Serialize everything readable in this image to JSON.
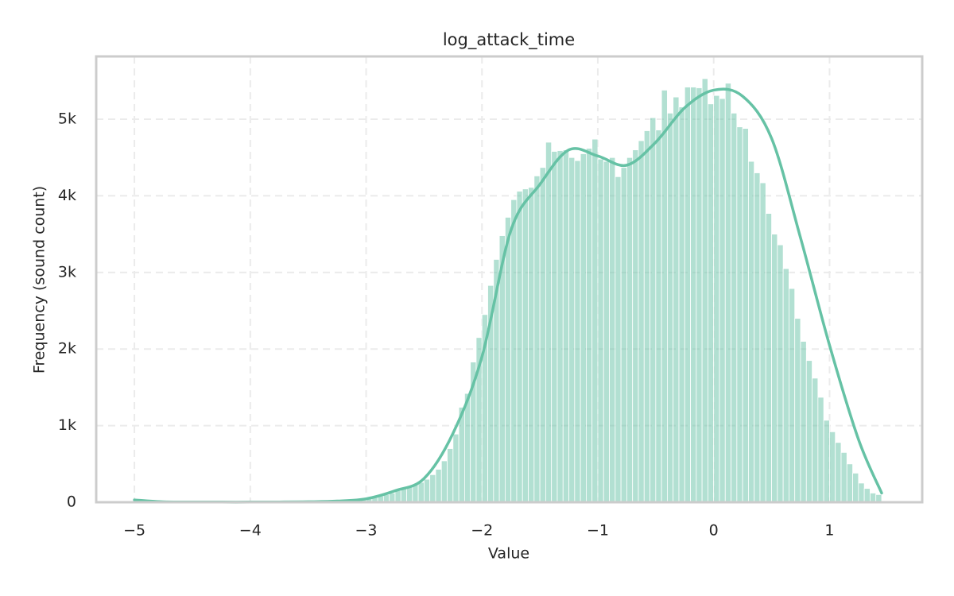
{
  "chart_data": {
    "type": "histogram",
    "title": "log_attack_time",
    "x_label": "Value",
    "y_label": "Frequency (sound count)",
    "color": "#66c2a5",
    "grid": true,
    "bins": [
      -5,
      -4.95,
      -4.9,
      -4.85,
      -4.8,
      -4.75,
      -4.7,
      -4.65,
      -4.6,
      -4.55,
      -4.5,
      -4.45,
      -4.4,
      -4.35,
      -4.3,
      -4.25,
      -4.2,
      -4.15,
      -4.1,
      -4.05,
      -4,
      -3.95,
      -3.9,
      -3.85,
      -3.8,
      -3.75,
      -3.7,
      -3.65,
      -3.6,
      -3.55,
      -3.5,
      -3.45,
      -3.4,
      -3.35,
      -3.3,
      -3.25,
      -3.2,
      -3.15,
      -3.1,
      -3.05,
      -3,
      -2.95,
      -2.9,
      -2.85,
      -2.8,
      -2.75,
      -2.7,
      -2.65,
      -2.6,
      -2.55,
      -2.5,
      -2.45,
      -2.4,
      -2.35,
      -2.3,
      -2.25,
      -2.2,
      -2.15,
      -2.1,
      -2.05,
      -2,
      -1.95,
      -1.9,
      -1.85,
      -1.8,
      -1.75,
      -1.7,
      -1.65,
      -1.6,
      -1.55,
      -1.5,
      -1.45,
      -1.4,
      -1.35,
      -1.3,
      -1.25,
      -1.2,
      -1.15,
      -1.1,
      -1.05,
      -1,
      -0.95,
      -0.9,
      -0.85,
      -0.8,
      -0.75,
      -0.7,
      -0.65,
      -0.6,
      -0.55,
      -0.5,
      -0.45,
      -0.4,
      -0.35,
      -0.3,
      -0.25,
      -0.2,
      -0.15,
      -0.1,
      -0.05,
      0,
      0.05,
      0.1,
      0.15,
      0.2,
      0.25,
      0.3,
      0.35,
      0.4,
      0.45,
      0.5,
      0.55,
      0.6,
      0.65,
      0.7,
      0.75,
      0.8,
      0.85,
      0.9,
      0.95,
      1,
      1.05,
      1.1,
      1.15,
      1.2,
      1.25,
      1.3,
      1.35,
      1.4,
      1.45
    ],
    "counts": [
      22,
      8,
      4,
      3,
      2,
      2,
      1,
      1,
      1,
      1,
      1,
      1,
      2,
      1,
      1,
      2,
      2,
      1,
      2,
      2,
      2,
      3,
      3,
      3,
      4,
      4,
      5,
      5,
      6,
      7,
      8,
      9,
      10,
      12,
      14,
      16,
      19,
      23,
      28,
      35,
      45,
      60,
      80,
      100,
      120,
      150,
      175,
      200,
      230,
      260,
      300,
      360,
      430,
      540,
      700,
      890,
      1240,
      1420,
      1830,
      2150,
      2450,
      2830,
      3170,
      3480,
      3720,
      3950,
      4060,
      4090,
      4110,
      4260,
      4370,
      4700,
      4580,
      4590,
      4600,
      4500,
      4460,
      4550,
      4620,
      4740,
      4480,
      4450,
      4500,
      4250,
      4370,
      4500,
      4600,
      4720,
      4850,
      5020,
      4860,
      5380,
      5080,
      5290,
      5160,
      5420,
      5420,
      5410,
      5530,
      5200,
      5310,
      5270,
      5470,
      5080,
      4900,
      4880,
      4450,
      4300,
      4170,
      3770,
      3500,
      3360,
      3050,
      2790,
      2400,
      2100,
      1850,
      1620,
      1370,
      1070,
      920,
      780,
      650,
      500,
      380,
      250,
      180,
      120,
      100
    ],
    "kde": {
      "x": [
        -5,
        -4.75,
        -4.5,
        -4.25,
        -4,
        -3.75,
        -3.5,
        -3.25,
        -3,
        -2.75,
        -2.5,
        -2.25,
        -2,
        -1.75,
        -1.5,
        -1.25,
        -1,
        -0.75,
        -0.5,
        -0.25,
        0,
        0.25,
        0.5,
        0.75,
        1,
        1.25,
        1.45
      ],
      "values": [
        30,
        5,
        3,
        2,
        2,
        3,
        6,
        15,
        45,
        150,
        310,
        900,
        1900,
        3550,
        4150,
        4600,
        4520,
        4400,
        4700,
        5150,
        5380,
        5300,
        4750,
        3450,
        2050,
        820,
        120
      ]
    },
    "xlim": [
      -5.33,
      1.8
    ],
    "ylim": [
      0,
      5820
    ],
    "xticks": [
      {
        "value": -5,
        "label": "−5"
      },
      {
        "value": -4,
        "label": "−4"
      },
      {
        "value": -3,
        "label": "−3"
      },
      {
        "value": -2,
        "label": "−2"
      },
      {
        "value": -1,
        "label": "−1"
      },
      0,
      1
    ],
    "yticks": [
      0,
      {
        "value": 1000,
        "label": "1k"
      },
      {
        "value": 2000,
        "label": "2k"
      },
      {
        "value": 3000,
        "label": "3k"
      },
      {
        "value": 4000,
        "label": "4k"
      },
      {
        "value": 5000,
        "label": "5k"
      }
    ]
  }
}
